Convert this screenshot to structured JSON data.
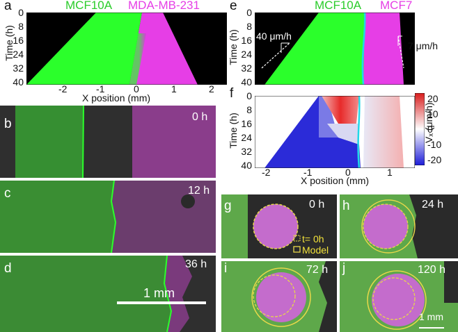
{
  "colors": {
    "green": "#2bff2b",
    "magenta": "#e63ee6",
    "cyan": "#22d8e8",
    "yellow": "#e8d84a",
    "black": "#000000",
    "tissue_green": "#5ea84a"
  },
  "panel_a": {
    "label": "a",
    "title_left": "MCF10A",
    "title_right": "MDA-MB-231",
    "y_label": "Time (h)",
    "y_ticks": [
      "0",
      "8",
      "16",
      "24",
      "32",
      "40"
    ],
    "x_label": "X position (mm)",
    "x_ticks": [
      "-2",
      "-1",
      "0",
      "1",
      "2"
    ]
  },
  "panel_e": {
    "label": "e",
    "title_left": "MCF10A",
    "title_right": "MCF7",
    "y_label": "Time (h)",
    "y_ticks": [
      "0",
      "8",
      "16",
      "24",
      "32",
      "40"
    ],
    "speed_left": "40 μm/h",
    "speed_right": "7 μm/h"
  },
  "panel_f": {
    "label": "f",
    "y_label": "Time (h)",
    "y_ticks": [
      "0",
      "8",
      "16",
      "24",
      "32",
      "40"
    ],
    "x_label": "X position (mm)",
    "x_ticks": [
      "-2",
      "-1",
      "0",
      "1"
    ],
    "colorbar_ticks": [
      "20",
      "10",
      "0",
      "-10",
      "-20"
    ],
    "colorbar_label": "Vₓ (μm/h)"
  },
  "panels_bcd": [
    {
      "label": "b",
      "time": "0 h"
    },
    {
      "label": "c",
      "time": "12 h"
    },
    {
      "label": "d",
      "time": "36 h",
      "scale": "1 mm"
    }
  ],
  "panels_ghij": [
    {
      "label": "g",
      "time": "0 h",
      "legend_dashed": "t= 0h",
      "legend_solid": "Model"
    },
    {
      "label": "h",
      "time": "24 h"
    },
    {
      "label": "i",
      "time": "72 h"
    },
    {
      "label": "j",
      "time": "120 h",
      "scale": "1 mm"
    }
  ]
}
